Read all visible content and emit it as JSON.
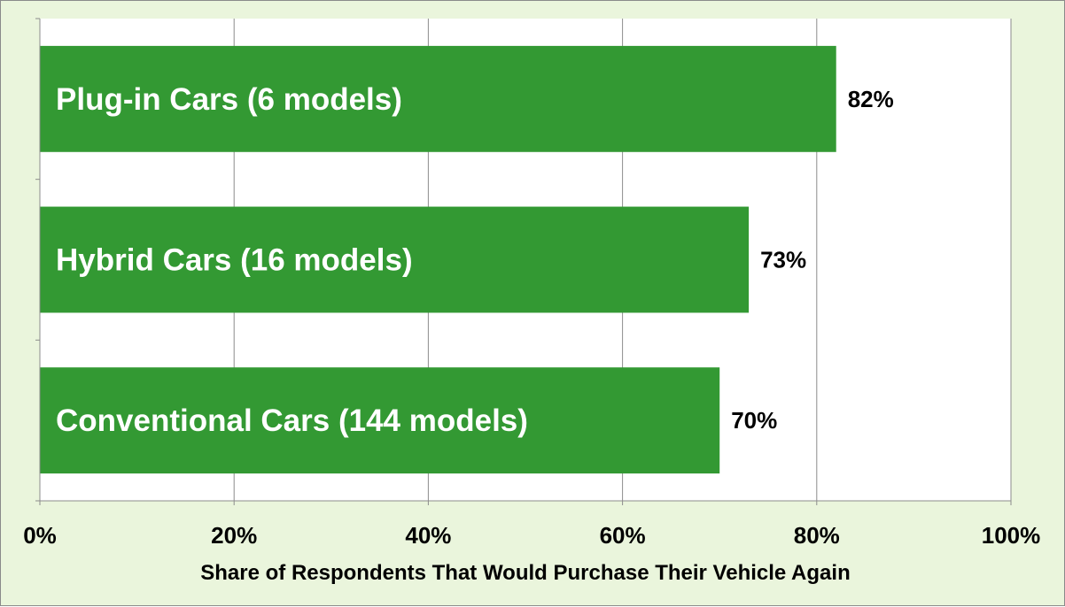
{
  "chart_data": {
    "type": "bar",
    "orientation": "horizontal",
    "categories": [
      "Plug-in Cars (6 models)",
      "Hybrid Cars (16 models)",
      "Conventional Cars (144 models)"
    ],
    "values": [
      82,
      73,
      70
    ],
    "value_labels": [
      "82%",
      "73%",
      "70%"
    ],
    "xlabel": "Share of Respondents That Would Purchase Their Vehicle Again",
    "xlim": [
      0,
      100
    ],
    "x_ticks": [
      0,
      20,
      40,
      60,
      80,
      100
    ],
    "x_tick_labels": [
      "0%",
      "20%",
      "40%",
      "60%",
      "80%",
      "100%"
    ],
    "grid": true,
    "category_labels_inside_bars": true
  },
  "colors": {
    "bar": "#339933",
    "background": "#eaf5dc",
    "plot_background": "#ffffff",
    "gridline": "#8c8c8c"
  }
}
